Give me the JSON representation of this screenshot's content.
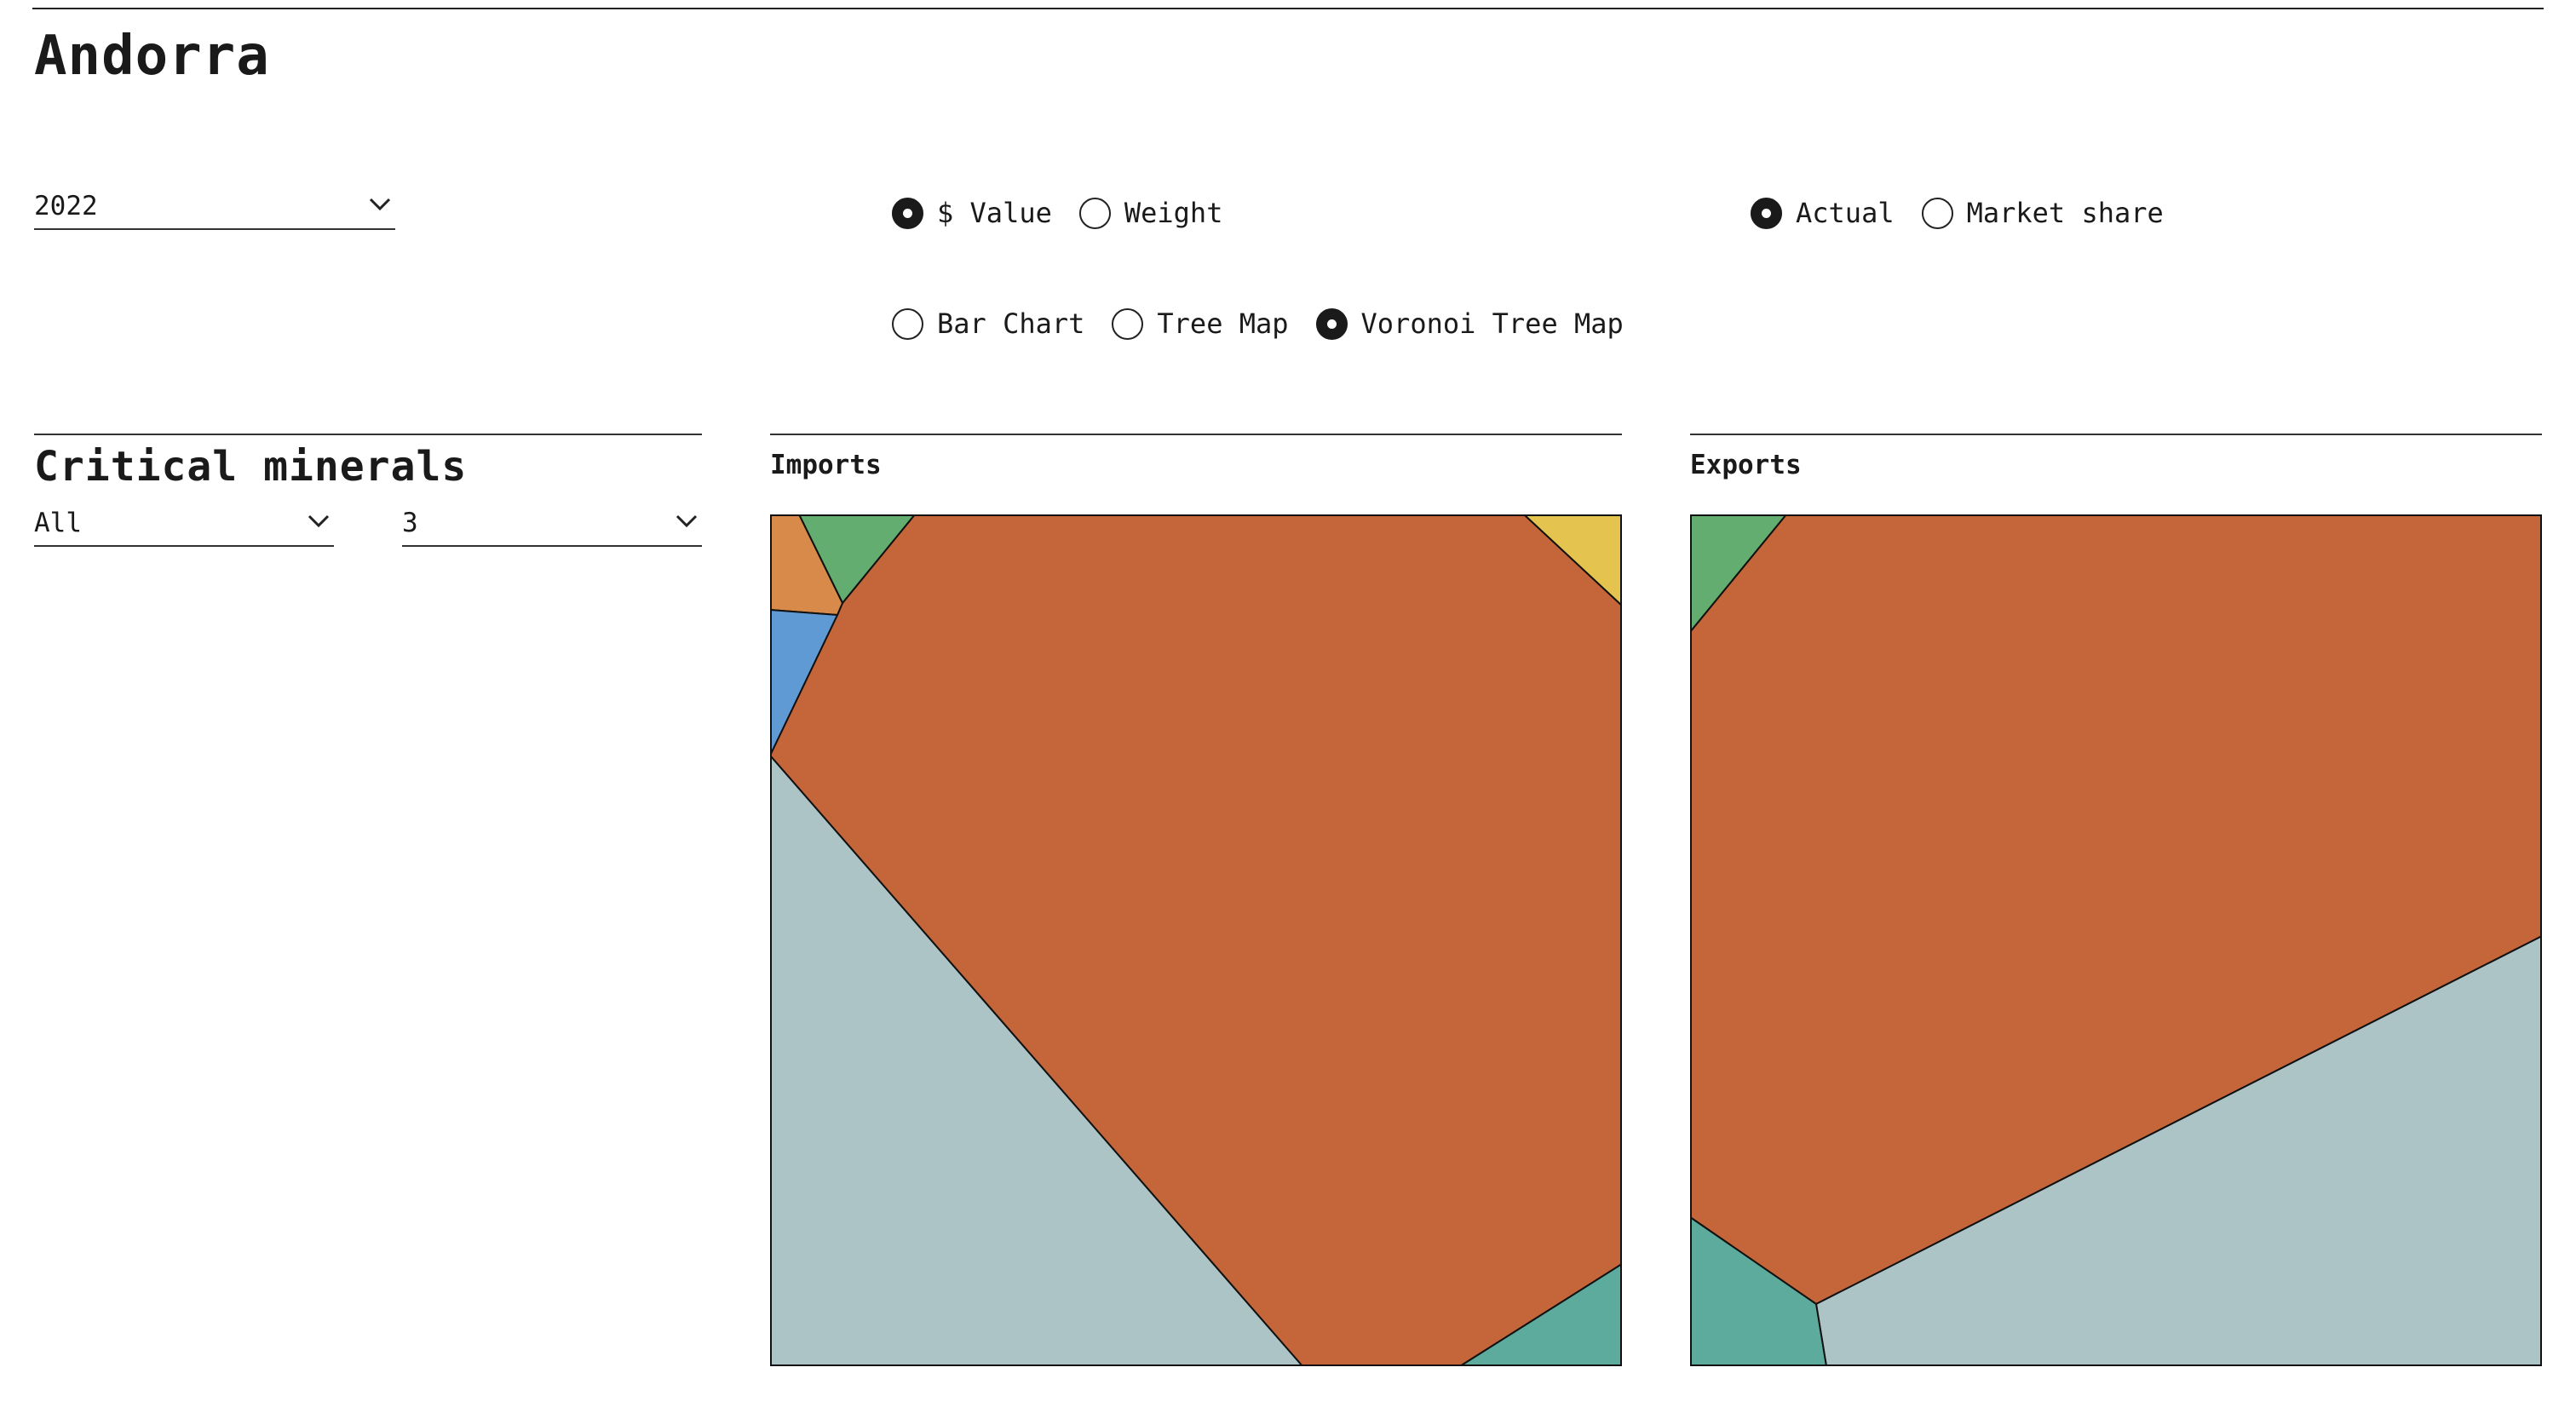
{
  "page": {
    "country": "Andorra",
    "year_select": {
      "value": "2022",
      "icon": "chevron-down-icon"
    },
    "measure_options": [
      {
        "label": "$ Value",
        "selected": true
      },
      {
        "label": "Weight",
        "selected": false
      }
    ],
    "mode_options": [
      {
        "label": "Actual",
        "selected": true
      },
      {
        "label": "Market share",
        "selected": false
      }
    ],
    "view_options": [
      {
        "label": "Bar Chart",
        "selected": false
      },
      {
        "label": "Tree Map",
        "selected": false
      },
      {
        "label": "Voronoi Tree Map",
        "selected": true
      }
    ]
  },
  "filters": {
    "title": "Critical minerals",
    "category_select": {
      "value": "All",
      "icon": "chevron-down-icon"
    },
    "count_select": {
      "value": "3",
      "icon": "chevron-down-icon"
    }
  },
  "colors": {
    "rust": "#c4663a",
    "gray_blue": "#adc4c7",
    "green": "#62ad6f",
    "teal": "#5cab9c",
    "orange": "#d88a4b",
    "blue": "#5f9ad4",
    "yellow": "#e5c34f"
  },
  "chart_data": [
    {
      "type": "voronoi-treemap",
      "title": "Imports",
      "cells": [
        {
          "color": "#c4663a"
        },
        {
          "color": "#adc4c7"
        },
        {
          "color": "#5cab9c"
        },
        {
          "color": "#62ad6f"
        },
        {
          "color": "#d88a4b"
        },
        {
          "color": "#5f9ad4"
        },
        {
          "color": "#e5c34f"
        }
      ]
    },
    {
      "type": "voronoi-treemap",
      "title": "Exports",
      "cells": [
        {
          "color": "#c4663a"
        },
        {
          "color": "#adc4c7"
        },
        {
          "color": "#5cab9c"
        },
        {
          "color": "#62ad6f"
        }
      ]
    }
  ]
}
